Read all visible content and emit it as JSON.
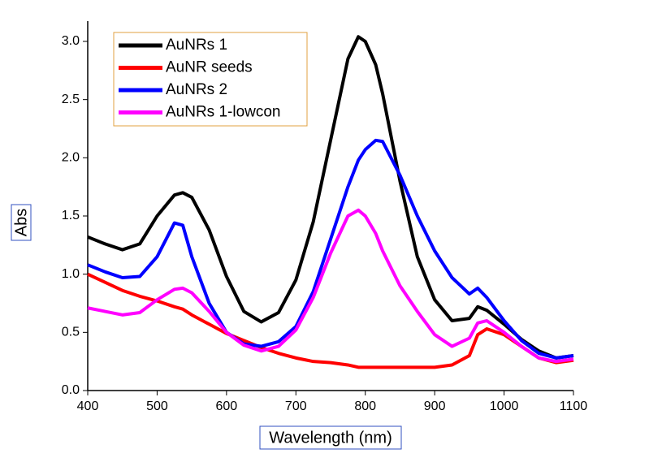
{
  "chart_data": {
    "type": "line",
    "x_label": "Wavelength (nm)",
    "y_label": "Abs",
    "x": [
      400,
      425,
      450,
      475,
      500,
      525,
      537,
      550,
      575,
      600,
      625,
      650,
      675,
      700,
      725,
      750,
      775,
      790,
      800,
      815,
      825,
      850,
      875,
      900,
      925,
      950,
      962,
      975,
      1000,
      1025,
      1050,
      1075,
      1100
    ],
    "series": [
      {
        "name": "AuNRs 1",
        "color": "#000000",
        "values": [
          1.32,
          1.26,
          1.21,
          1.26,
          1.5,
          1.68,
          1.7,
          1.66,
          1.38,
          0.98,
          0.68,
          0.59,
          0.67,
          0.95,
          1.45,
          2.15,
          2.85,
          3.04,
          3.0,
          2.8,
          2.55,
          1.8,
          1.15,
          0.78,
          0.6,
          0.62,
          0.72,
          0.69,
          0.57,
          0.44,
          0.34,
          0.28,
          0.3
        ]
      },
      {
        "name": "AuNR seeds",
        "color": "#ff0000",
        "values": [
          1.0,
          0.93,
          0.86,
          0.81,
          0.77,
          0.72,
          0.7,
          0.65,
          0.57,
          0.49,
          0.43,
          0.37,
          0.32,
          0.28,
          0.25,
          0.24,
          0.22,
          0.2,
          0.2,
          0.2,
          0.2,
          0.2,
          0.2,
          0.2,
          0.22,
          0.3,
          0.48,
          0.53,
          0.48,
          0.38,
          0.28,
          0.24,
          0.26
        ]
      },
      {
        "name": "AuNRs 2",
        "color": "#0000ff",
        "values": [
          1.08,
          1.02,
          0.97,
          0.98,
          1.15,
          1.44,
          1.42,
          1.15,
          0.75,
          0.5,
          0.4,
          0.38,
          0.42,
          0.55,
          0.85,
          1.3,
          1.75,
          1.98,
          2.07,
          2.15,
          2.14,
          1.85,
          1.5,
          1.2,
          0.97,
          0.83,
          0.88,
          0.8,
          0.6,
          0.43,
          0.32,
          0.28,
          0.3
        ]
      },
      {
        "name": "AuNRs 1-lowcon",
        "color": "#ff00ff",
        "values": [
          0.71,
          0.68,
          0.65,
          0.67,
          0.78,
          0.87,
          0.88,
          0.84,
          0.68,
          0.5,
          0.39,
          0.34,
          0.38,
          0.52,
          0.8,
          1.18,
          1.5,
          1.55,
          1.5,
          1.35,
          1.2,
          0.9,
          0.68,
          0.48,
          0.38,
          0.45,
          0.58,
          0.6,
          0.5,
          0.38,
          0.28,
          0.25,
          0.27
        ]
      }
    ],
    "xlim": [
      400,
      1100
    ],
    "xticks": [
      400,
      500,
      600,
      700,
      800,
      900,
      1000,
      1100
    ],
    "ylim": [
      0,
      3.0
    ],
    "yticks": [
      {
        "value": 0,
        "label": "0.0"
      },
      0.5,
      {
        "value": 1,
        "label": "1.0"
      },
      1.5,
      {
        "value": 2,
        "label": "2.0"
      },
      2.5,
      {
        "value": 3,
        "label": "3.0"
      }
    ],
    "legend": "top-left"
  }
}
